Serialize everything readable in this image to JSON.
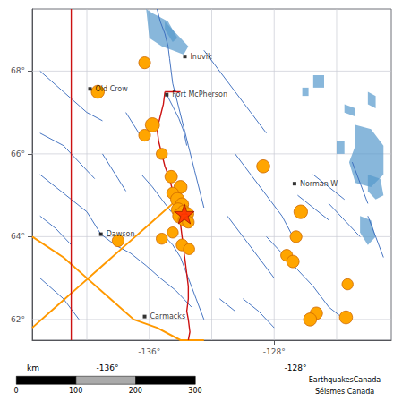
{
  "chart_data": {
    "type": "scatter",
    "xlim": [
      -143.5,
      -120.5
    ],
    "ylim": [
      61.5,
      69.5
    ],
    "xticks": [
      {
        "value": -136,
        "label": "-136°"
      },
      {
        "value": -128,
        "label": "-128°"
      }
    ],
    "yticks": [
      {
        "value": 68,
        "label": "68°"
      },
      {
        "value": 66,
        "label": "66°"
      },
      {
        "value": 64,
        "label": "64°"
      },
      {
        "value": 62,
        "label": "62°"
      }
    ],
    "grid": true,
    "grid_x": [
      -140,
      -136,
      -132,
      -128,
      -124
    ],
    "grid_y": [
      62,
      64,
      66,
      68
    ],
    "rivers": {
      "color": "#3366bb",
      "lines": [
        [
          [
            -135.5,
            69.5
          ],
          [
            -135.3,
            69.2
          ],
          [
            -135.0,
            68.9
          ],
          [
            -134.8,
            68.6
          ],
          [
            -134.7,
            68.3
          ],
          [
            -134.6,
            68.0
          ],
          [
            -134.5,
            67.7
          ],
          [
            -134.3,
            67.4
          ],
          [
            -134.1,
            67.1
          ],
          [
            -133.9,
            66.8
          ],
          [
            -133.7,
            66.5
          ],
          [
            -133.5,
            66.2
          ],
          [
            -133.3,
            65.9
          ],
          [
            -133.1,
            65.6
          ],
          [
            -132.9,
            65.3
          ],
          [
            -132.7,
            65.0
          ],
          [
            -132.5,
            64.7
          ]
        ],
        [
          [
            -134.88,
            67.43
          ],
          [
            -134.5,
            67.15
          ],
          [
            -134.1,
            66.85
          ],
          [
            -133.8,
            66.55
          ],
          [
            -133.6,
            66.2
          ]
        ],
        [
          [
            -143.0,
            65.5
          ],
          [
            -142.0,
            65.2
          ],
          [
            -141.0,
            64.9
          ],
          [
            -140.0,
            64.6
          ],
          [
            -139.1,
            64.06
          ],
          [
            -138.2,
            63.8
          ],
          [
            -137.2,
            63.6
          ],
          [
            -136.2,
            63.3
          ],
          [
            -135.3,
            63.0
          ],
          [
            -134.3,
            62.7
          ],
          [
            -133.3,
            62.3
          ]
        ],
        [
          [
            -143.0,
            68.0
          ],
          [
            -141.5,
            67.5
          ],
          [
            -140.0,
            67.0
          ],
          [
            -139.0,
            66.8
          ]
        ],
        [
          [
            -143.0,
            66.5
          ],
          [
            -141.5,
            66.2
          ],
          [
            -140.5,
            65.8
          ],
          [
            -139.5,
            65.4
          ]
        ],
        [
          [
            -143.0,
            64.5
          ],
          [
            -142.0,
            64.2
          ],
          [
            -141.0,
            63.8
          ]
        ],
        [
          [
            -143.0,
            63.0
          ],
          [
            -141.5,
            62.5
          ],
          [
            -140.5,
            62.0
          ]
        ],
        [
          [
            -132.5,
            68.5
          ],
          [
            -131.5,
            68.0
          ],
          [
            -130.5,
            67.5
          ],
          [
            -129.5,
            67.0
          ],
          [
            -128.5,
            66.5
          ]
        ],
        [
          [
            -130.5,
            66.0
          ],
          [
            -129.5,
            65.5
          ],
          [
            -128.5,
            65.0
          ],
          [
            -127.5,
            64.5
          ],
          [
            -126.8,
            64.0
          ]
        ],
        [
          [
            -131.0,
            64.5
          ],
          [
            -130.0,
            64.0
          ],
          [
            -129.0,
            63.5
          ],
          [
            -128.0,
            63.0
          ]
        ],
        [
          [
            -126.5,
            63.2
          ],
          [
            -125.5,
            62.8
          ],
          [
            -124.5,
            62.3
          ],
          [
            -123.5,
            62.0
          ]
        ],
        [
          [
            -130.0,
            62.5
          ],
          [
            -129.0,
            62.2
          ],
          [
            -128.0,
            61.8
          ]
        ],
        [
          [
            -134.0,
            63.5
          ],
          [
            -133.5,
            63.0
          ],
          [
            -133.0,
            62.5
          ],
          [
            -132.5,
            62.0
          ]
        ],
        [
          [
            -131.5,
            62.5
          ],
          [
            -130.5,
            62.2
          ]
        ],
        [
          [
            -128.5,
            64.0
          ],
          [
            -127.5,
            63.6
          ],
          [
            -126.5,
            63.2
          ]
        ],
        [
          [
            -124.5,
            64.8
          ],
          [
            -123.5,
            64.4
          ],
          [
            -122.5,
            64.0
          ]
        ],
        [
          [
            -125.5,
            65.5
          ],
          [
            -124.5,
            65.2
          ],
          [
            -123.5,
            64.9
          ]
        ],
        [
          [
            -126.5,
            65.0
          ],
          [
            -125.5,
            64.7
          ],
          [
            -124.5,
            64.4
          ]
        ],
        [
          [
            -123.0,
            65.8
          ],
          [
            -122.5,
            65.3
          ],
          [
            -122.0,
            64.8
          ]
        ],
        [
          [
            -122.0,
            64.5
          ],
          [
            -121.5,
            64.0
          ],
          [
            -121.0,
            63.5
          ]
        ],
        [
          [
            -136.5,
            65.5
          ],
          [
            -135.8,
            65.2
          ],
          [
            -135.2,
            64.9
          ],
          [
            -134.6,
            64.6
          ]
        ],
        [
          [
            -135.0,
            64.0
          ],
          [
            -134.5,
            63.8
          ],
          [
            -134.0,
            63.5
          ]
        ],
        [
          [
            -139.0,
            66.0
          ],
          [
            -138.5,
            65.7
          ],
          [
            -138.0,
            65.4
          ],
          [
            -137.5,
            65.1
          ]
        ],
        [
          [
            -137.5,
            67.0
          ],
          [
            -137.0,
            66.7
          ],
          [
            -136.5,
            66.4
          ]
        ]
      ]
    },
    "lakes": {
      "color": "#5599cc",
      "polygons": [
        [
          [
            -136.2,
            69.5
          ],
          [
            -135.8,
            69.4
          ],
          [
            -135.3,
            69.3
          ],
          [
            -134.8,
            69.2
          ],
          [
            -134.5,
            69.0
          ],
          [
            -134.0,
            68.8
          ],
          [
            -133.5,
            68.6
          ],
          [
            -133.8,
            68.4
          ],
          [
            -134.5,
            68.5
          ],
          [
            -135.2,
            68.6
          ],
          [
            -136.0,
            68.8
          ],
          [
            -136.2,
            69.5
          ]
        ],
        [
          [
            -135.0,
            69.2
          ],
          [
            -134.5,
            69.0
          ],
          [
            -134.2,
            68.8
          ],
          [
            -134.5,
            68.7
          ],
          [
            -135.0,
            69.0
          ]
        ],
        [
          [
            -122.8,
            66.7
          ],
          [
            -121.8,
            66.6
          ],
          [
            -121.0,
            66.2
          ],
          [
            -121.0,
            65.5
          ],
          [
            -121.8,
            65.2
          ],
          [
            -122.8,
            65.3
          ],
          [
            -123.2,
            65.8
          ],
          [
            -122.8,
            66.2
          ]
        ],
        [
          [
            -125.5,
            67.9
          ],
          [
            -124.8,
            67.9
          ],
          [
            -124.8,
            67.6
          ],
          [
            -125.5,
            67.6
          ]
        ],
        [
          [
            -126.2,
            67.6
          ],
          [
            -125.8,
            67.6
          ],
          [
            -125.8,
            67.4
          ],
          [
            -126.2,
            67.4
          ]
        ],
        [
          [
            -123.5,
            67.2
          ],
          [
            -122.8,
            67.1
          ],
          [
            -122.8,
            66.9
          ],
          [
            -123.5,
            67.0
          ]
        ],
        [
          [
            -122.0,
            67.5
          ],
          [
            -121.5,
            67.4
          ],
          [
            -121.5,
            67.1
          ],
          [
            -122.0,
            67.2
          ]
        ],
        [
          [
            -124.0,
            66.3
          ],
          [
            -123.5,
            66.3
          ],
          [
            -123.5,
            66.0
          ],
          [
            -124.0,
            66.0
          ]
        ],
        [
          [
            -122.5,
            64.5
          ],
          [
            -121.8,
            64.4
          ],
          [
            -121.5,
            64.0
          ],
          [
            -122.0,
            63.8
          ],
          [
            -122.5,
            64.1
          ]
        ],
        [
          [
            -122.0,
            65.5
          ],
          [
            -121.2,
            65.4
          ],
          [
            -121.0,
            65.0
          ],
          [
            -121.5,
            64.9
          ],
          [
            -122.0,
            65.1
          ]
        ]
      ]
    },
    "borders": {
      "color": "#cc1111",
      "lines": [
        [
          [
            -141.0,
            61.5
          ],
          [
            -141.0,
            69.5
          ]
        ],
        [
          [
            -135.0,
            67.5
          ],
          [
            -135.1,
            67.2
          ],
          [
            -135.3,
            66.9
          ],
          [
            -135.5,
            66.6
          ],
          [
            -135.4,
            66.3
          ],
          [
            -135.2,
            66.0
          ],
          [
            -135.0,
            65.7
          ],
          [
            -134.7,
            65.4
          ],
          [
            -134.5,
            65.1
          ],
          [
            -134.3,
            64.8
          ],
          [
            -134.2,
            64.5
          ],
          [
            -134.0,
            64.3
          ],
          [
            -133.9,
            64.0
          ],
          [
            -133.8,
            63.7
          ],
          [
            -133.7,
            63.4
          ],
          [
            -133.6,
            63.1
          ],
          [
            -133.5,
            62.8
          ],
          [
            -133.5,
            62.5
          ],
          [
            -133.6,
            62.2
          ],
          [
            -133.5,
            62.0
          ],
          [
            -133.4,
            61.7
          ],
          [
            -133.5,
            61.5
          ],
          [
            -133.5,
            61.5
          ]
        ],
        [
          [
            -135.0,
            67.5
          ],
          [
            -134.0,
            67.5
          ]
        ]
      ]
    },
    "faults": {
      "color": "#FF9900",
      "lines": [
        [
          [
            -143.5,
            64.0
          ],
          [
            -141.5,
            63.5
          ],
          [
            -140.0,
            63.0
          ],
          [
            -138.5,
            62.5
          ],
          [
            -137.0,
            62.0
          ],
          [
            -135.5,
            61.8
          ],
          [
            -134.0,
            61.5
          ],
          [
            -132.5,
            61.5
          ]
        ],
        [
          [
            -143.5,
            61.8
          ],
          [
            -142.0,
            62.3
          ],
          [
            -140.5,
            62.8
          ],
          [
            -139.0,
            63.3
          ],
          [
            -137.5,
            63.8
          ],
          [
            -136.0,
            64.3
          ],
          [
            -134.5,
            64.8
          ]
        ]
      ]
    },
    "earthquakes": {
      "color": "#FFA500",
      "x": [
        -136.3,
        -139.3,
        -135.8,
        -136.3,
        -135.2,
        -134.6,
        -134.0,
        -134.5,
        -134.2,
        -133.9,
        -134.15,
        -133.8,
        -133.55,
        -134.05,
        -133.75,
        -133.5,
        -134.5,
        -135.2,
        -133.9,
        -133.45,
        -138.0,
        -128.7,
        -126.3,
        -126.6,
        -127.2,
        -126.8,
        -125.3,
        -125.7,
        -123.4,
        -123.3
      ],
      "y": [
        68.2,
        67.5,
        66.7,
        66.45,
        66.0,
        65.45,
        65.2,
        65.05,
        64.9,
        64.78,
        64.65,
        64.6,
        64.55,
        64.5,
        64.4,
        64.35,
        64.1,
        63.95,
        63.8,
        63.7,
        63.9,
        65.7,
        64.6,
        64.0,
        63.55,
        63.4,
        62.15,
        62.0,
        62.05,
        62.85
      ],
      "size": [
        90,
        110,
        130,
        90,
        80,
        100,
        110,
        90,
        120,
        110,
        120,
        110,
        100,
        130,
        100,
        90,
        80,
        80,
        90,
        80,
        90,
        110,
        120,
        90,
        90,
        100,
        100,
        110,
        110,
        80
      ]
    },
    "main_earthquake": {
      "x": -133.75,
      "y": 64.55,
      "size": 150,
      "color": "#FF2200",
      "marker": "star"
    },
    "cities": {
      "marker": "square",
      "names": [
        "Inuvik",
        "Fort McPherson",
        "Old Crow",
        "Dawson",
        "Carmacks",
        "Norman W"
      ],
      "x": [
        -133.72,
        -134.88,
        -139.8,
        -139.1,
        -136.3,
        -126.7
      ],
      "y": [
        68.35,
        67.43,
        67.57,
        64.06,
        62.07,
        65.28
      ]
    },
    "scale_unit": "km",
    "scale_ticks": [
      0,
      100,
      200,
      300
    ],
    "footer_labels": [
      "-136°",
      "-128°"
    ],
    "attribution": [
      "EarthquakesCanada",
      "Séismes Canada"
    ]
  }
}
